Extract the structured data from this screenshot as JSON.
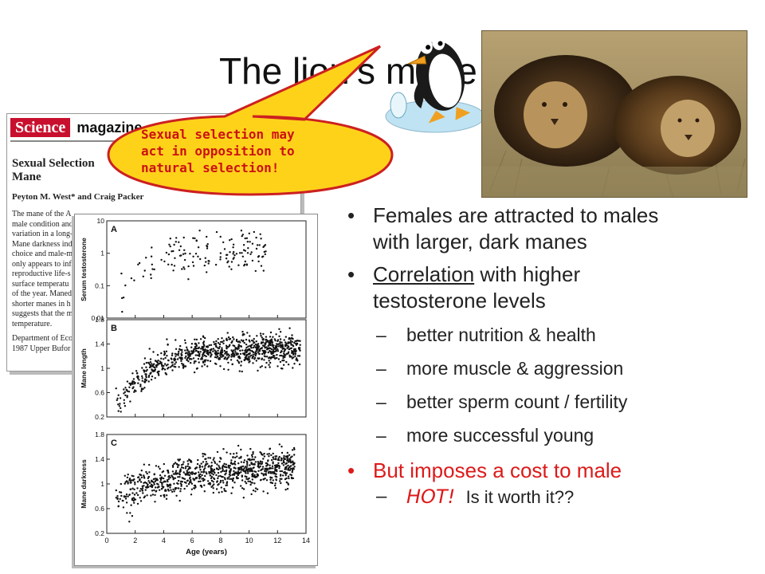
{
  "slide": {
    "title": "The lion’s mane"
  },
  "article": {
    "journal_logo": "Science",
    "journal_section": "magazine",
    "headline_lines": [
      "Sexual Selection",
      "Mane"
    ],
    "authors": "Peyton M. West* and Craig Packer",
    "body_lines": [
      "The mane of the A",
      "male condition and",
      "variation in a long-",
      "Mane darkness ind",
      "choice and male-m",
      "only appears to inf",
      "reproductive life-s",
      "surface temperatu",
      "of the year. Maned",
      "shorter manes in h",
      "suggests that the m",
      "temperature."
    ],
    "affiliation_lines": [
      "Department of Eco",
      "1987 Upper Bufor"
    ]
  },
  "callout": {
    "lines": [
      "Sexual selection may",
      "act in opposition to",
      "natural selection!"
    ]
  },
  "bullets": {
    "b1_lines": [
      "Females are attracted to males",
      "with larger, dark manes"
    ],
    "b2_underlined": "Correlation",
    "b2_rest": " with higher",
    "b2_line2": "testosterone levels",
    "sub": [
      "better nutrition & health",
      "more muscle & aggression",
      "better sperm count / fertility",
      "more successful young"
    ],
    "b3": "But imposes a cost to male",
    "last_hot": "HOT!",
    "last_rest": "Is it worth it??"
  },
  "chart_data": {
    "type": "scatter",
    "x_label": "Age (years)",
    "x_ticks": [
      "0",
      "2",
      "4",
      "6",
      "8",
      "10",
      "12",
      "14"
    ],
    "xlim": [
      0,
      14
    ],
    "panels": [
      {
        "letter": "A",
        "ylabel": "Serum testosterone",
        "scale": "log",
        "y_ticks": [
          "10",
          "1",
          "0.1",
          "0.01"
        ],
        "ylim": [
          0.01,
          10
        ],
        "description": "Testosterone rises from ~0.05 at age 1 to ~1–3 by age 5 and stays high"
      },
      {
        "letter": "B",
        "ylabel": "Mane length",
        "scale": "linear",
        "y_ticks": [
          "1.8",
          "1.4",
          "1",
          "0.6",
          "0.2"
        ],
        "ylim": [
          0.2,
          1.8
        ],
        "description": "Mane length rises from ~0.4 at age 1 to ~1.3 by age 6, plateau thereafter"
      },
      {
        "letter": "C",
        "ylabel": "Mane darkness",
        "scale": "linear",
        "y_ticks": [
          "1.8",
          "1.4",
          "1",
          "0.6",
          "0.2"
        ],
        "ylim": [
          0.2,
          1.8
        ],
        "description": "Mane darkness rises slowly from ~0.8 at age 1 to ~1.3 at age 12"
      }
    ]
  },
  "colors": {
    "accent_red": "#dd1a1a",
    "callout_fill": "#ffd21a",
    "callout_border": "#cc2020",
    "science_red": "#c8102e"
  }
}
